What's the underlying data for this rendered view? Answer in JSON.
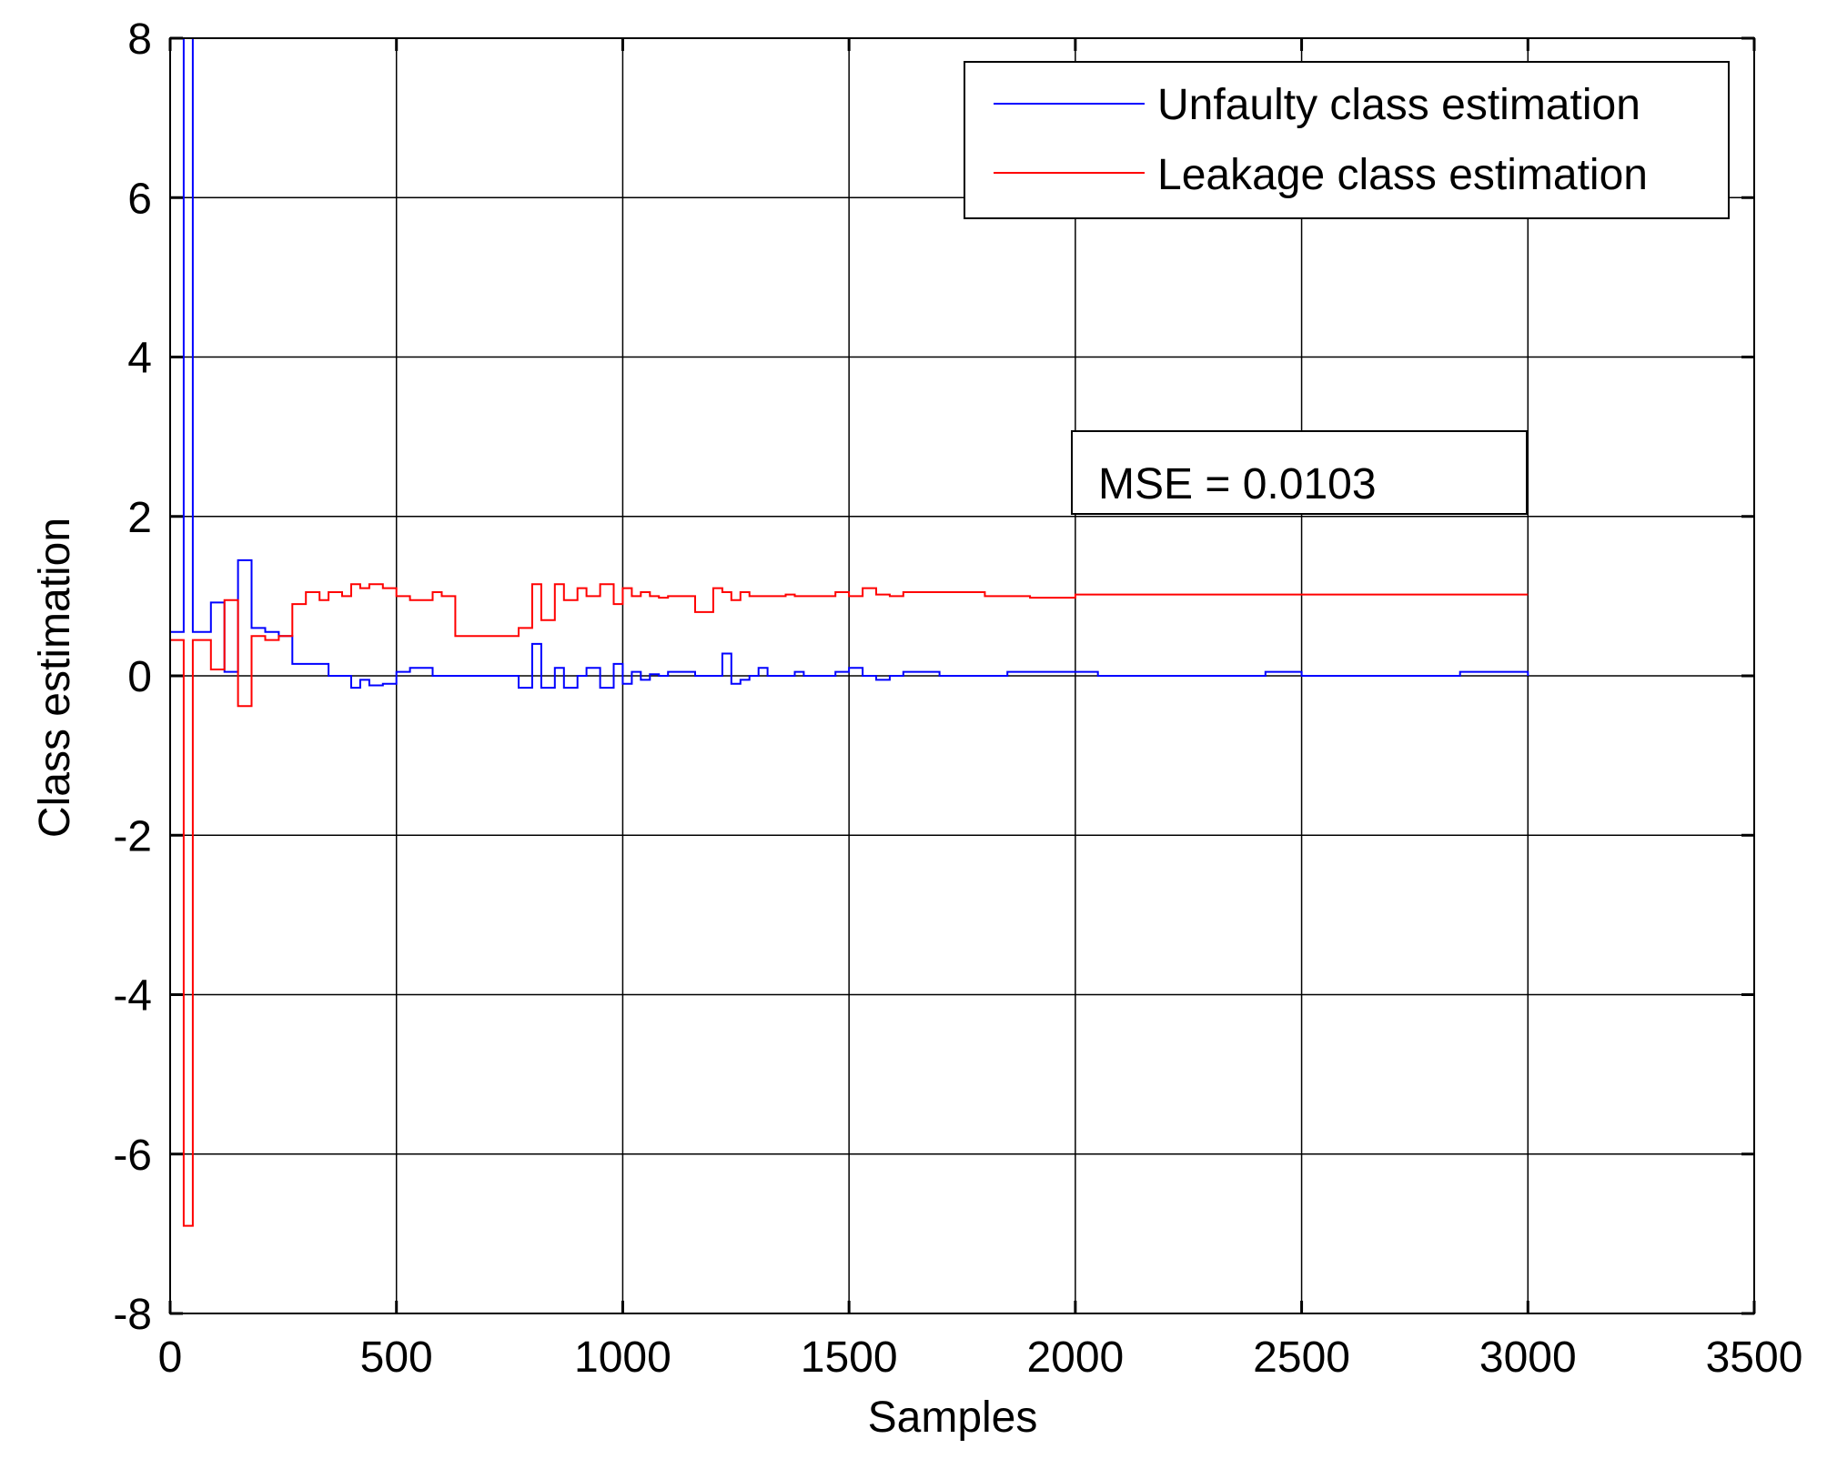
{
  "chart_data": {
    "type": "line",
    "title": "",
    "xlabel": "Samples",
    "ylabel": "Class estimation",
    "xlim": [
      0,
      3500
    ],
    "ylim": [
      -8,
      8
    ],
    "xticks": [
      0,
      500,
      1000,
      1500,
      2000,
      2500,
      3000,
      3500
    ],
    "yticks": [
      -8,
      -6,
      -4,
      -2,
      0,
      2,
      4,
      6,
      8
    ],
    "xtick_labels": [
      "0",
      "500",
      "1000",
      "1500",
      "2000",
      "2500",
      "3000",
      "3500"
    ],
    "ytick_labels": [
      "-8",
      "-6",
      "-4",
      "-2",
      "0",
      "2",
      "4",
      "6",
      "8"
    ],
    "grid": true,
    "legend_position": "top-right",
    "step": true,
    "series": [
      {
        "name": "Unfaulty class estimation",
        "color": "#0000ff",
        "x": [
          0,
          30,
          50,
          60,
          90,
          120,
          150,
          180,
          210,
          240,
          270,
          320,
          350,
          380,
          400,
          420,
          440,
          470,
          500,
          530,
          580,
          620,
          640,
          700,
          750,
          770,
          800,
          820,
          850,
          870,
          900,
          920,
          950,
          980,
          1000,
          1020,
          1040,
          1060,
          1080,
          1100,
          1130,
          1160,
          1200,
          1220,
          1240,
          1260,
          1280,
          1300,
          1320,
          1360,
          1380,
          1400,
          1430,
          1470,
          1500,
          1530,
          1560,
          1590,
          1620,
          1660,
          1700,
          1750,
          1800,
          1850,
          1900,
          1950,
          2000,
          2050,
          2100,
          2200,
          2300,
          2400,
          2420,
          2500,
          2600,
          2700,
          2800,
          2850,
          2900,
          3000
        ],
        "values": [
          0.55,
          8.0,
          0.55,
          0.55,
          0.92,
          0.05,
          1.45,
          0.6,
          0.55,
          0.5,
          0.15,
          0.15,
          0.0,
          0.0,
          -0.15,
          -0.05,
          -0.12,
          -0.1,
          0.05,
          0.1,
          0.0,
          0.0,
          0.0,
          0.0,
          0.0,
          -0.15,
          0.4,
          -0.15,
          0.1,
          -0.15,
          0.0,
          0.1,
          -0.15,
          0.15,
          -0.1,
          0.05,
          -0.05,
          0.02,
          0.0,
          0.05,
          0.05,
          0.0,
          0.0,
          0.28,
          -0.1,
          -0.05,
          0.0,
          0.1,
          0.0,
          0.0,
          0.05,
          0.0,
          0.0,
          0.05,
          0.1,
          0.0,
          -0.05,
          0.0,
          0.05,
          0.05,
          0.0,
          0.0,
          0.0,
          0.05,
          0.05,
          0.05,
          0.05,
          0.0,
          0.0,
          0.0,
          0.0,
          0.0,
          0.05,
          0.0,
          0.0,
          0.0,
          0.0,
          0.05,
          0.05,
          0.0
        ]
      },
      {
        "name": "Leakage class estimation",
        "color": "#ff0000",
        "x": [
          0,
          30,
          50,
          60,
          90,
          120,
          150,
          180,
          210,
          240,
          270,
          300,
          330,
          350,
          380,
          400,
          420,
          440,
          470,
          500,
          530,
          580,
          600,
          630,
          700,
          750,
          770,
          800,
          820,
          850,
          870,
          900,
          920,
          950,
          980,
          1000,
          1020,
          1040,
          1060,
          1080,
          1100,
          1130,
          1160,
          1200,
          1220,
          1240,
          1260,
          1280,
          1300,
          1320,
          1360,
          1380,
          1400,
          1430,
          1470,
          1500,
          1530,
          1560,
          1590,
          1620,
          1660,
          1700,
          1750,
          1800,
          1850,
          1900,
          1950,
          2000,
          2050,
          2100,
          2200,
          2300,
          2400,
          2500,
          2600,
          2700,
          2800,
          2900,
          3000
        ],
        "values": [
          0.45,
          -6.9,
          0.45,
          0.45,
          0.08,
          0.95,
          -0.38,
          0.5,
          0.45,
          0.5,
          0.9,
          1.05,
          0.95,
          1.05,
          1.0,
          1.15,
          1.1,
          1.15,
          1.1,
          1.0,
          0.95,
          1.05,
          1.0,
          0.5,
          0.5,
          0.5,
          0.6,
          1.15,
          0.7,
          1.15,
          0.95,
          1.1,
          1.0,
          1.15,
          0.9,
          1.1,
          1.0,
          1.05,
          1.0,
          0.98,
          1.0,
          1.0,
          0.8,
          1.1,
          1.05,
          0.95,
          1.05,
          1.0,
          1.0,
          1.0,
          1.02,
          1.0,
          1.0,
          1.0,
          1.05,
          1.0,
          1.1,
          1.02,
          1.0,
          1.05,
          1.05,
          1.05,
          1.05,
          1.0,
          1.0,
          0.98,
          0.98,
          1.02,
          1.02,
          1.02,
          1.02,
          1.02,
          1.02,
          1.02,
          1.02,
          1.02,
          1.02,
          1.02,
          1.02
        ]
      }
    ],
    "annotations": [
      {
        "text": "MSE = 0.0103"
      }
    ]
  }
}
